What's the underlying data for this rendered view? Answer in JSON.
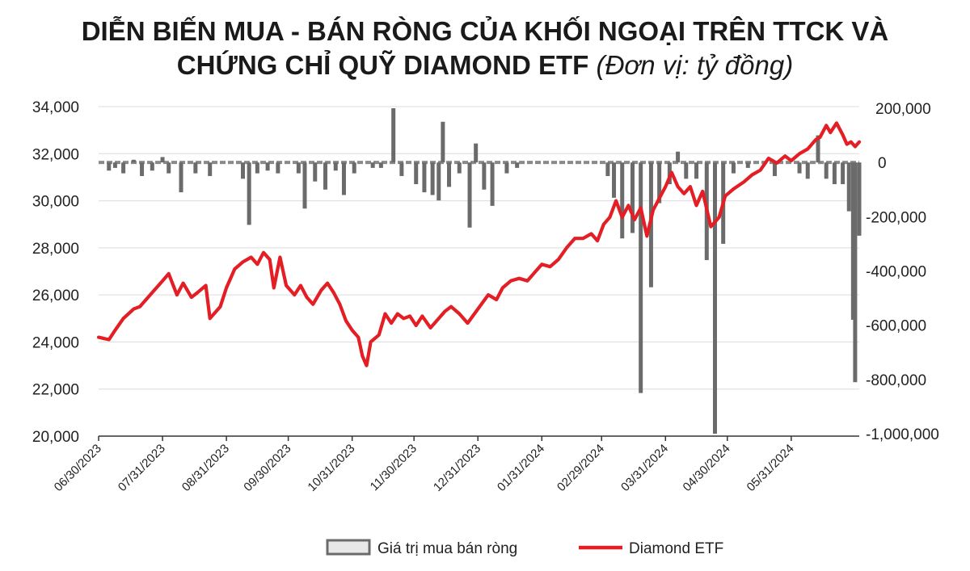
{
  "title": {
    "line1": "DIỄN BIẾN MUA - BÁN RÒNG CỦA KHỐI NGOẠI TRÊN TTCK VÀ",
    "line2": "CHỨNG CHỈ QUỸ DIAMOND ETF",
    "unit": "(Đơn vị: tỷ đồng)"
  },
  "chart_data": {
    "type": "bar+line",
    "left_axis": {
      "series": "Diamond ETF",
      "range": [
        20000,
        34000
      ],
      "ticks": [
        "20,000",
        "22,000",
        "24,000",
        "26,000",
        "28,000",
        "30,000",
        "32,000",
        "34,000"
      ]
    },
    "right_axis": {
      "series": "Giá trị mua bán ròng",
      "range": [
        -1000000,
        200000
      ],
      "ticks": [
        "-1,000,000",
        "-800,000",
        "-600,000",
        "-400,000",
        "-200,000",
        "0",
        "200,000"
      ]
    },
    "x_tick_labels": [
      "06/30/2023",
      "07/31/2023",
      "08/31/2023",
      "09/30/2023",
      "10/31/2023",
      "11/30/2023",
      "12/31/2023",
      "01/31/2024",
      "02/29/2024",
      "03/31/2024",
      "04/30/2024",
      "05/31/2024"
    ],
    "series": [
      {
        "name": "Diamond ETF",
        "type": "line",
        "axis": "left",
        "color": "#e31e24",
        "points": [
          [
            "2023-06-30",
            24200
          ],
          [
            "2023-07-05",
            24100
          ],
          [
            "2023-07-08",
            24500
          ],
          [
            "2023-07-12",
            25000
          ],
          [
            "2023-07-17",
            25400
          ],
          [
            "2023-07-20",
            25500
          ],
          [
            "2023-07-25",
            26000
          ],
          [
            "2023-07-31",
            26600
          ],
          [
            "2023-08-03",
            26900
          ],
          [
            "2023-08-07",
            26000
          ],
          [
            "2023-08-10",
            26500
          ],
          [
            "2023-08-14",
            25900
          ],
          [
            "2023-08-17",
            26100
          ],
          [
            "2023-08-21",
            26400
          ],
          [
            "2023-08-23",
            25000
          ],
          [
            "2023-08-28",
            25500
          ],
          [
            "2023-08-31",
            26300
          ],
          [
            "2023-09-04",
            27100
          ],
          [
            "2023-09-08",
            27400
          ],
          [
            "2023-09-12",
            27600
          ],
          [
            "2023-09-15",
            27300
          ],
          [
            "2023-09-18",
            27800
          ],
          [
            "2023-09-21",
            27500
          ],
          [
            "2023-09-23",
            26300
          ],
          [
            "2023-09-26",
            27600
          ],
          [
            "2023-09-29",
            26400
          ],
          [
            "2023-10-03",
            26000
          ],
          [
            "2023-10-06",
            26400
          ],
          [
            "2023-10-09",
            25900
          ],
          [
            "2023-10-12",
            25600
          ],
          [
            "2023-10-16",
            26200
          ],
          [
            "2023-10-19",
            26500
          ],
          [
            "2023-10-22",
            26100
          ],
          [
            "2023-10-25",
            25600
          ],
          [
            "2023-10-28",
            24900
          ],
          [
            "2023-10-31",
            24500
          ],
          [
            "2023-11-03",
            24200
          ],
          [
            "2023-11-05",
            23400
          ],
          [
            "2023-11-07",
            23000
          ],
          [
            "2023-11-09",
            24000
          ],
          [
            "2023-11-13",
            24300
          ],
          [
            "2023-11-16",
            25200
          ],
          [
            "2023-11-19",
            24800
          ],
          [
            "2023-11-22",
            25200
          ],
          [
            "2023-11-25",
            25000
          ],
          [
            "2023-11-28",
            25100
          ],
          [
            "2023-12-01",
            24700
          ],
          [
            "2023-12-04",
            25100
          ],
          [
            "2023-12-08",
            24600
          ],
          [
            "2023-12-12",
            25000
          ],
          [
            "2023-12-15",
            25300
          ],
          [
            "2023-12-18",
            25500
          ],
          [
            "2023-12-22",
            25200
          ],
          [
            "2023-12-26",
            24800
          ],
          [
            "2023-12-31",
            25400
          ],
          [
            "2024-01-05",
            26000
          ],
          [
            "2024-01-09",
            25800
          ],
          [
            "2024-01-12",
            26300
          ],
          [
            "2024-01-16",
            26600
          ],
          [
            "2024-01-20",
            26700
          ],
          [
            "2024-01-24",
            26600
          ],
          [
            "2024-01-28",
            27000
          ],
          [
            "2024-01-31",
            27300
          ],
          [
            "2024-02-04",
            27200
          ],
          [
            "2024-02-08",
            27500
          ],
          [
            "2024-02-12",
            28000
          ],
          [
            "2024-02-16",
            28400
          ],
          [
            "2024-02-20",
            28400
          ],
          [
            "2024-02-24",
            28600
          ],
          [
            "2024-02-27",
            28300
          ],
          [
            "2024-03-01",
            29000
          ],
          [
            "2024-03-04",
            29300
          ],
          [
            "2024-03-07",
            30000
          ],
          [
            "2024-03-10",
            29300
          ],
          [
            "2024-03-13",
            29800
          ],
          [
            "2024-03-16",
            29200
          ],
          [
            "2024-03-19",
            29700
          ],
          [
            "2024-03-22",
            28500
          ],
          [
            "2024-03-25",
            29600
          ],
          [
            "2024-03-28",
            30100
          ],
          [
            "2024-03-31",
            30600
          ],
          [
            "2024-04-03",
            31200
          ],
          [
            "2024-04-06",
            30600
          ],
          [
            "2024-04-09",
            30300
          ],
          [
            "2024-04-12",
            30600
          ],
          [
            "2024-04-15",
            29800
          ],
          [
            "2024-04-18",
            30400
          ],
          [
            "2024-04-22",
            28900
          ],
          [
            "2024-04-26",
            29300
          ],
          [
            "2024-04-29",
            30200
          ],
          [
            "2024-05-03",
            30500
          ],
          [
            "2024-05-08",
            30800
          ],
          [
            "2024-05-12",
            31100
          ],
          [
            "2024-05-16",
            31300
          ],
          [
            "2024-05-20",
            31800
          ],
          [
            "2024-05-24",
            31600
          ],
          [
            "2024-05-28",
            31900
          ],
          [
            "2024-05-31",
            31700
          ],
          [
            "2024-06-04",
            32000
          ],
          [
            "2024-06-08",
            32200
          ],
          [
            "2024-06-12",
            32600
          ],
          [
            "2024-06-14",
            32700
          ],
          [
            "2024-06-17",
            33200
          ],
          [
            "2024-06-19",
            32900
          ],
          [
            "2024-06-22",
            33300
          ],
          [
            "2024-06-25",
            32800
          ],
          [
            "2024-06-27",
            32400
          ],
          [
            "2024-06-29",
            32500
          ],
          [
            "2024-07-01",
            32300
          ],
          [
            "2024-07-03",
            32500
          ]
        ]
      },
      {
        "name": "Giá trị mua bán ròng",
        "type": "bar",
        "axis": "right",
        "color": "#6b6b6b",
        "points": [
          [
            "2023-07-05",
            -30000
          ],
          [
            "2023-07-08",
            -20000
          ],
          [
            "2023-07-12",
            -40000
          ],
          [
            "2023-07-17",
            10000
          ],
          [
            "2023-07-21",
            -50000
          ],
          [
            "2023-07-26",
            -30000
          ],
          [
            "2023-07-31",
            20000
          ],
          [
            "2023-08-03",
            -40000
          ],
          [
            "2023-08-09",
            -110000
          ],
          [
            "2023-08-16",
            -40000
          ],
          [
            "2023-08-23",
            -50000
          ],
          [
            "2023-09-08",
            -60000
          ],
          [
            "2023-09-11",
            -230000
          ],
          [
            "2023-09-15",
            -40000
          ],
          [
            "2023-09-20",
            -30000
          ],
          [
            "2023-09-25",
            -40000
          ],
          [
            "2023-10-05",
            -40000
          ],
          [
            "2023-10-08",
            -170000
          ],
          [
            "2023-10-13",
            -70000
          ],
          [
            "2023-10-18",
            -100000
          ],
          [
            "2023-10-23",
            -30000
          ],
          [
            "2023-10-27",
            -120000
          ],
          [
            "2023-11-01",
            -40000
          ],
          [
            "2023-11-10",
            -20000
          ],
          [
            "2023-11-14",
            -20000
          ],
          [
            "2023-11-20",
            200000
          ],
          [
            "2023-11-24",
            -50000
          ],
          [
            "2023-12-01",
            -80000
          ],
          [
            "2023-12-05",
            -110000
          ],
          [
            "2023-12-09",
            -120000
          ],
          [
            "2023-12-12",
            -140000
          ],
          [
            "2023-12-14",
            150000
          ],
          [
            "2023-12-17",
            -90000
          ],
          [
            "2023-12-22",
            -40000
          ],
          [
            "2023-12-27",
            -240000
          ],
          [
            "2023-12-30",
            70000
          ],
          [
            "2024-01-03",
            -100000
          ],
          [
            "2024-01-07",
            -160000
          ],
          [
            "2024-01-14",
            -40000
          ],
          [
            "2024-01-19",
            -20000
          ],
          [
            "2024-03-03",
            -50000
          ],
          [
            "2024-03-06",
            -130000
          ],
          [
            "2024-03-10",
            -280000
          ],
          [
            "2024-03-15",
            -260000
          ],
          [
            "2024-03-19",
            -850000
          ],
          [
            "2024-03-24",
            -460000
          ],
          [
            "2024-03-28",
            -150000
          ],
          [
            "2024-04-02",
            -80000
          ],
          [
            "2024-04-06",
            40000
          ],
          [
            "2024-04-10",
            -60000
          ],
          [
            "2024-04-15",
            -60000
          ],
          [
            "2024-04-20",
            -360000
          ],
          [
            "2024-04-24",
            -1000000
          ],
          [
            "2024-04-28",
            -300000
          ],
          [
            "2024-05-03",
            -40000
          ],
          [
            "2024-05-10",
            -20000
          ],
          [
            "2024-05-23",
            -50000
          ],
          [
            "2024-06-04",
            -40000
          ],
          [
            "2024-06-08",
            -60000
          ],
          [
            "2024-06-13",
            100000
          ],
          [
            "2024-06-17",
            -60000
          ],
          [
            "2024-06-21",
            -80000
          ],
          [
            "2024-06-25",
            -80000
          ],
          [
            "2024-06-28",
            -180000
          ],
          [
            "2024-06-30",
            -580000
          ],
          [
            "2024-07-01",
            -810000
          ],
          [
            "2024-07-03",
            -270000
          ]
        ]
      }
    ]
  },
  "legend": [
    {
      "label": "Giá trị mua bán ròng",
      "color": "#6b6b6b",
      "symbol": "box"
    },
    {
      "label": "Diamond ETF",
      "color": "#e31e24",
      "symbol": "line"
    }
  ]
}
